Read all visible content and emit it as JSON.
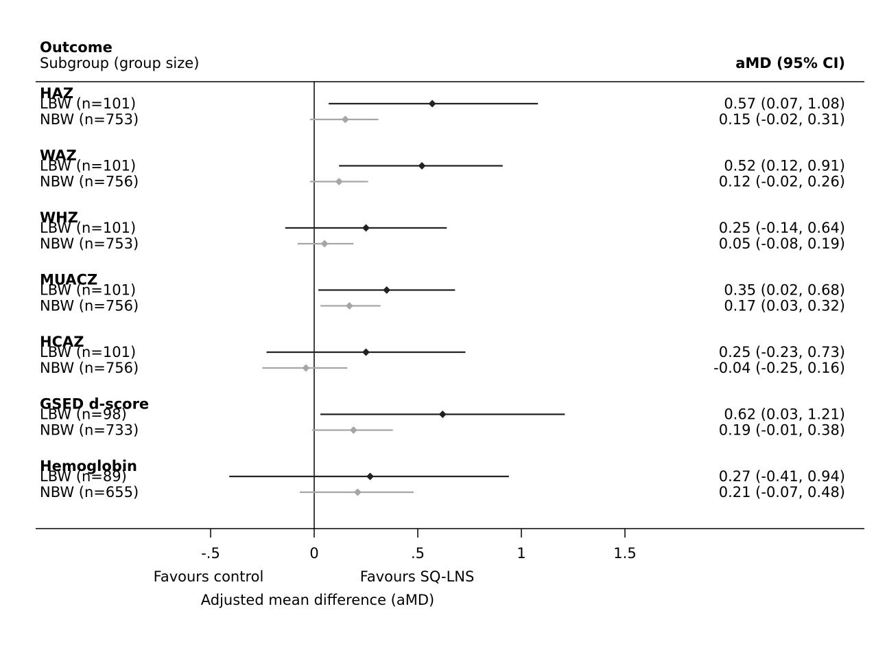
{
  "chart_data": {
    "type": "forest",
    "header": {
      "col_title": "Outcome",
      "col_subtitle": "Subgroup (group size)",
      "value_header": "aMD (95% CI)"
    },
    "x_axis": {
      "label": "Adjusted mean difference (aMD)",
      "range": [
        -0.5,
        1.5
      ],
      "ticks": [
        {
          "value": -0.5,
          "label": "-.5"
        },
        {
          "value": 0,
          "label": "0"
        },
        {
          "value": 0.5,
          "label": ".5"
        },
        {
          "value": 1,
          "label": "1"
        },
        {
          "value": 1.5,
          "label": "1.5"
        }
      ],
      "reference_line": 0,
      "favours_left": "Favours control",
      "favours_right": "Favours SQ-LNS"
    },
    "series": [
      {
        "key": "LBW",
        "color": "#222222"
      },
      {
        "key": "NBW",
        "color": "#a6a6a6"
      }
    ],
    "groups": [
      {
        "outcome": "HAZ",
        "rows": [
          {
            "group": "LBW",
            "label": "LBW (n=101)",
            "est": 0.57,
            "lo": 0.07,
            "hi": 1.08,
            "text": "0.57 (0.07, 1.08)"
          },
          {
            "group": "NBW",
            "label": "NBW (n=753)",
            "est": 0.15,
            "lo": -0.02,
            "hi": 0.31,
            "text": "0.15 (-0.02, 0.31)"
          }
        ]
      },
      {
        "outcome": "WAZ",
        "rows": [
          {
            "group": "LBW",
            "label": "LBW (n=101)",
            "est": 0.52,
            "lo": 0.12,
            "hi": 0.91,
            "text": "0.52 (0.12, 0.91)"
          },
          {
            "group": "NBW",
            "label": "NBW (n=756)",
            "est": 0.12,
            "lo": -0.02,
            "hi": 0.26,
            "text": "0.12 (-0.02, 0.26)"
          }
        ]
      },
      {
        "outcome": "WHZ",
        "rows": [
          {
            "group": "LBW",
            "label": "LBW (n=101)",
            "est": 0.25,
            "lo": -0.14,
            "hi": 0.64,
            "text": "0.25 (-0.14, 0.64)"
          },
          {
            "group": "NBW",
            "label": "NBW (n=753)",
            "est": 0.05,
            "lo": -0.08,
            "hi": 0.19,
            "text": "0.05 (-0.08, 0.19)"
          }
        ]
      },
      {
        "outcome": "MUACZ",
        "rows": [
          {
            "group": "LBW",
            "label": "LBW (n=101)",
            "est": 0.35,
            "lo": 0.02,
            "hi": 0.68,
            "text": "0.35 (0.02, 0.68)"
          },
          {
            "group": "NBW",
            "label": "NBW (n=756)",
            "est": 0.17,
            "lo": 0.03,
            "hi": 0.32,
            "text": "0.17 (0.03, 0.32)"
          }
        ]
      },
      {
        "outcome": "HCAZ",
        "rows": [
          {
            "group": "LBW",
            "label": "LBW (n=101)",
            "est": 0.25,
            "lo": -0.23,
            "hi": 0.73,
            "text": "0.25 (-0.23, 0.73)"
          },
          {
            "group": "NBW",
            "label": "NBW (n=756)",
            "est": -0.04,
            "lo": -0.25,
            "hi": 0.16,
            "text": "-0.04 (-0.25, 0.16)"
          }
        ]
      },
      {
        "outcome": "GSED d-score",
        "rows": [
          {
            "group": "LBW",
            "label": "LBW (n=98)",
            "est": 0.62,
            "lo": 0.03,
            "hi": 1.21,
            "text": "0.62 (0.03, 1.21)"
          },
          {
            "group": "NBW",
            "label": "NBW (n=733)",
            "est": 0.19,
            "lo": -0.01,
            "hi": 0.38,
            "text": "0.19 (-0.01, 0.38)"
          }
        ]
      },
      {
        "outcome": "Hemoglobin",
        "rows": [
          {
            "group": "LBW",
            "label": "LBW (n=89)",
            "est": 0.27,
            "lo": -0.41,
            "hi": 0.94,
            "text": "0.27 (-0.41, 0.94)"
          },
          {
            "group": "NBW",
            "label": "NBW (n=655)",
            "est": 0.21,
            "lo": -0.07,
            "hi": 0.48,
            "text": "0.21 (-0.07, 0.48)"
          }
        ]
      }
    ]
  }
}
